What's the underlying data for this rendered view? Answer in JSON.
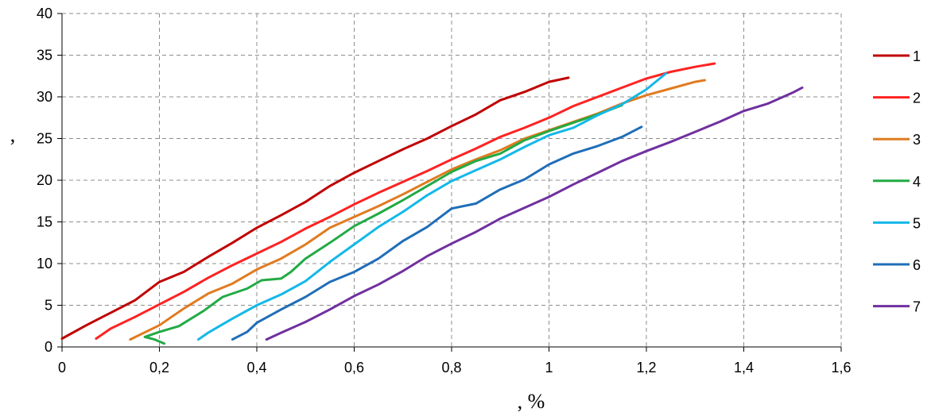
{
  "chart_data": {
    "type": "line",
    "xlabel": ", %",
    "ylabel": ",",
    "xlim": [
      0,
      1.6
    ],
    "ylim": [
      0,
      40
    ],
    "xticks": [
      "0",
      "0,2",
      "0,4",
      "0,6",
      "0,8",
      "1",
      "1,2",
      "1,4",
      "1,6"
    ],
    "yticks": [
      "0",
      "5",
      "10",
      "15",
      "20",
      "25",
      "30",
      "35",
      "40"
    ],
    "grid": true,
    "legend_position": "right",
    "series": [
      {
        "name": "1",
        "color": "#c00000",
        "x": [
          0,
          0.05,
          0.1,
          0.15,
          0.2,
          0.25,
          0.3,
          0.35,
          0.4,
          0.45,
          0.5,
          0.55,
          0.6,
          0.65,
          0.7,
          0.75,
          0.8,
          0.85,
          0.9,
          0.95,
          1.0,
          1.04
        ],
        "y": [
          1,
          2.6,
          4.1,
          5.6,
          7.8,
          9.0,
          10.8,
          12.5,
          14.3,
          15.8,
          17.4,
          19.3,
          20.9,
          22.3,
          23.7,
          25.0,
          26.5,
          27.9,
          29.6,
          30.6,
          31.8,
          32.3
        ]
      },
      {
        "name": "2",
        "color": "#ff2222",
        "x": [
          0.07,
          0.1,
          0.15,
          0.2,
          0.25,
          0.3,
          0.35,
          0.4,
          0.45,
          0.5,
          0.55,
          0.6,
          0.65,
          0.7,
          0.75,
          0.8,
          0.85,
          0.9,
          0.95,
          1.0,
          1.05,
          1.1,
          1.15,
          1.2,
          1.25,
          1.3,
          1.34
        ],
        "y": [
          1,
          2.2,
          3.6,
          5.1,
          6.6,
          8.3,
          9.8,
          11.2,
          12.6,
          14.2,
          15.6,
          17.1,
          18.5,
          19.8,
          21.1,
          22.5,
          23.8,
          25.2,
          26.3,
          27.5,
          28.9,
          30.0,
          31.1,
          32.2,
          33.0,
          33.6,
          34.0
        ]
      },
      {
        "name": "3",
        "color": "#e07b20",
        "x": [
          0.14,
          0.2,
          0.25,
          0.3,
          0.35,
          0.4,
          0.45,
          0.5,
          0.55,
          0.6,
          0.65,
          0.7,
          0.75,
          0.8,
          0.85,
          0.9,
          0.95,
          1.0,
          1.05,
          1.1,
          1.15,
          1.2,
          1.25,
          1.3,
          1.32
        ],
        "y": [
          0.9,
          2.6,
          4.6,
          6.4,
          7.6,
          9.3,
          10.6,
          12.3,
          14.3,
          15.6,
          16.9,
          18.3,
          19.8,
          21.3,
          22.5,
          23.6,
          25.0,
          26.0,
          27.0,
          28.0,
          29.2,
          30.2,
          31.0,
          31.8,
          32.0
        ]
      },
      {
        "name": "4",
        "color": "#22aa44",
        "x": [
          0.21,
          0.19,
          0.17,
          0.2,
          0.24,
          0.29,
          0.33,
          0.38,
          0.41,
          0.45,
          0.47,
          0.5,
          0.55,
          0.6,
          0.65,
          0.7,
          0.75,
          0.8,
          0.85,
          0.9,
          0.95,
          1.0,
          1.05,
          1.1,
          1.15
        ],
        "y": [
          0.4,
          0.9,
          1.2,
          1.8,
          2.5,
          4.3,
          6.0,
          7.0,
          8.0,
          8.2,
          9.0,
          10.6,
          12.5,
          14.5,
          16.0,
          17.6,
          19.3,
          21.0,
          22.3,
          23.2,
          24.8,
          25.9,
          26.9,
          27.9,
          29.0
        ]
      },
      {
        "name": "5",
        "color": "#14b8e8",
        "x": [
          0.28,
          0.3,
          0.35,
          0.4,
          0.45,
          0.5,
          0.55,
          0.6,
          0.65,
          0.7,
          0.75,
          0.8,
          0.85,
          0.9,
          0.95,
          1.0,
          1.05,
          1.1,
          1.15,
          1.2,
          1.24
        ],
        "y": [
          0.9,
          1.7,
          3.4,
          5.0,
          6.3,
          7.9,
          10.2,
          12.3,
          14.4,
          16.2,
          18.2,
          19.9,
          21.2,
          22.5,
          24.0,
          25.4,
          26.3,
          27.8,
          29.1,
          30.9,
          32.8
        ]
      },
      {
        "name": "6",
        "color": "#1f6eb8",
        "x": [
          0.35,
          0.38,
          0.4,
          0.45,
          0.5,
          0.55,
          0.6,
          0.65,
          0.7,
          0.75,
          0.8,
          0.85,
          0.9,
          0.95,
          1.0,
          1.05,
          1.1,
          1.15,
          1.19
        ],
        "y": [
          0.9,
          1.8,
          2.9,
          4.5,
          6.0,
          7.8,
          9.0,
          10.6,
          12.7,
          14.4,
          16.6,
          17.2,
          18.9,
          20.1,
          21.9,
          23.2,
          24.1,
          25.2,
          26.4
        ]
      },
      {
        "name": "7",
        "color": "#7030a0",
        "x": [
          0.42,
          0.45,
          0.5,
          0.55,
          0.6,
          0.65,
          0.7,
          0.75,
          0.8,
          0.85,
          0.9,
          0.95,
          1.0,
          1.05,
          1.1,
          1.15,
          1.2,
          1.25,
          1.3,
          1.35,
          1.4,
          1.45,
          1.5,
          1.52
        ],
        "y": [
          0.9,
          1.7,
          3.0,
          4.5,
          6.1,
          7.5,
          9.1,
          10.9,
          12.4,
          13.8,
          15.4,
          16.7,
          18.0,
          19.5,
          20.9,
          22.3,
          23.5,
          24.6,
          25.8,
          27.0,
          28.3,
          29.2,
          30.5,
          31.1
        ]
      }
    ]
  }
}
